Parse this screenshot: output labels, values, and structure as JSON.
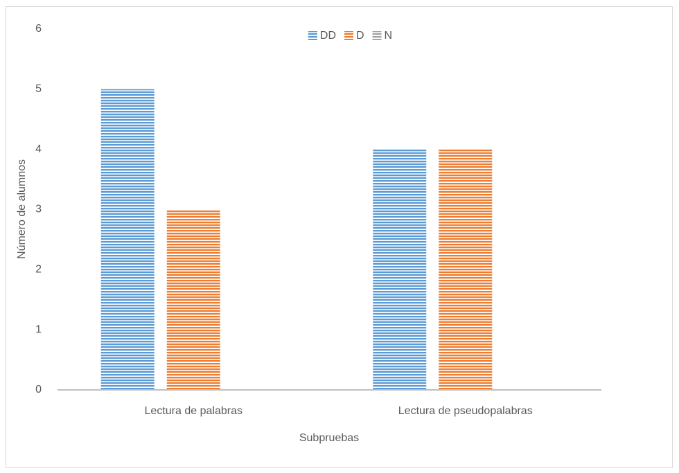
{
  "chart_data": {
    "type": "bar",
    "categories": [
      "Lectura de palabras",
      "Lectura de pseudopalabras"
    ],
    "series": [
      {
        "name": "DD",
        "color": "#5b9bd5",
        "values": [
          5,
          4
        ]
      },
      {
        "name": "D",
        "color": "#ed7d31",
        "values": [
          3,
          4
        ]
      },
      {
        "name": "N",
        "color": "#a5a5a5",
        "values": [
          0,
          0
        ]
      }
    ],
    "ylim": [
      0,
      6
    ],
    "yticks": [
      0,
      1,
      2,
      3,
      4,
      5,
      6
    ],
    "y_label": "Número de alumnos",
    "x_label": "Subpruebas",
    "grid": false,
    "legend": "top",
    "pattern": "horizontal-stripes"
  }
}
